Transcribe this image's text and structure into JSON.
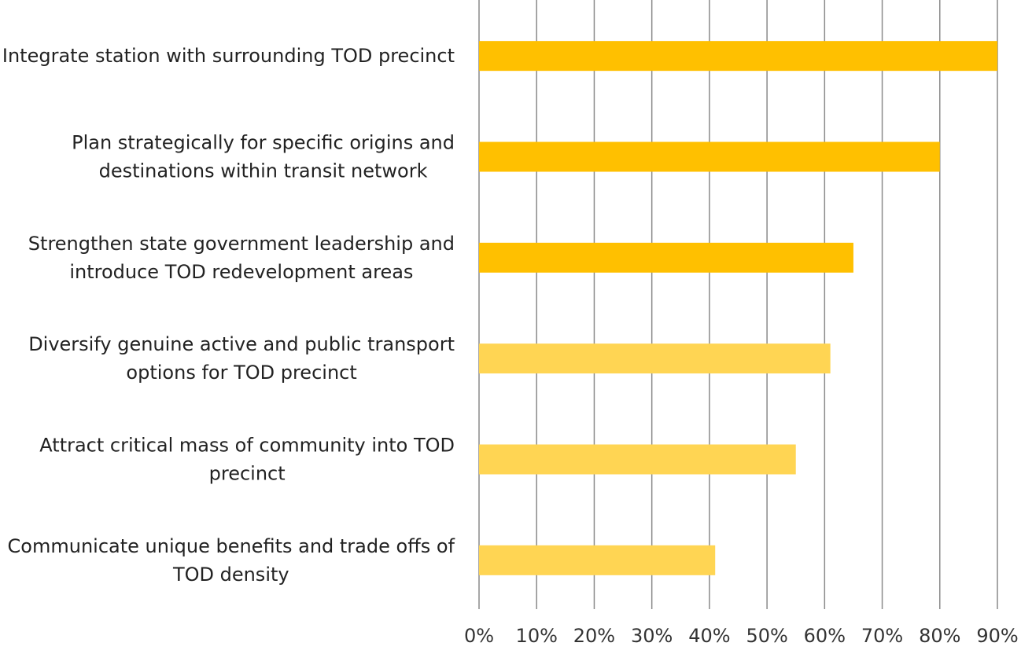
{
  "chart_data": {
    "type": "bar",
    "orientation": "horizontal",
    "title": "",
    "xlabel": "",
    "ylabel": "",
    "xlim": [
      0,
      0.9
    ],
    "grid": true,
    "categories": [
      [
        "Integrate station with surrounding TOD precinct"
      ],
      [
        "Plan strategically for specific origins and",
        "destinations within transit network"
      ],
      [
        "Strengthen state government leadership  and",
        "introduce TOD redevelopment areas"
      ],
      [
        "Diversify genuine active and public transport",
        "options for TOD precinct"
      ],
      [
        "Attract critical mass of community into TOD",
        "precinct"
      ],
      [
        "Communicate unique benefits and trade offs of",
        "TOD density"
      ]
    ],
    "values": [
      0.9,
      0.8,
      0.65,
      0.61,
      0.55,
      0.41
    ],
    "bar_colors": [
      "#FFC000",
      "#FFC000",
      "#FFC000",
      "#FFD553",
      "#FFD553",
      "#FFD553"
    ],
    "x_ticks": [
      0,
      0.1,
      0.2,
      0.3,
      0.4,
      0.5,
      0.6,
      0.7,
      0.8,
      0.9
    ],
    "x_tick_labels": [
      "0%",
      "10%",
      "20%",
      "30%",
      "40%",
      "50%",
      "60%",
      "70%",
      "80%",
      "90%"
    ]
  }
}
